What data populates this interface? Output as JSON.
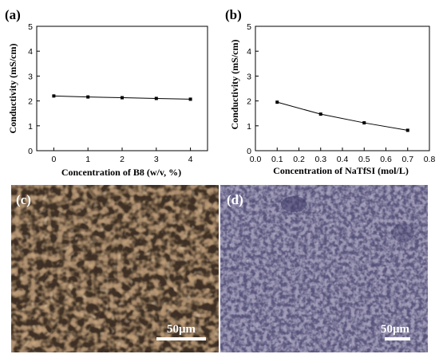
{
  "chart_data": [
    {
      "panel": "(a)",
      "type": "line",
      "xlabel": "Concentration of B8 (w/v, %)",
      "ylabel": "Conductivity (mS/cm)",
      "x": [
        0,
        1,
        2,
        3,
        4
      ],
      "y": [
        2.2,
        2.16,
        2.13,
        2.1,
        2.07
      ],
      "xlim": [
        -0.5,
        4.5
      ],
      "ylim": [
        0,
        5
      ],
      "xticks": [
        0,
        1,
        2,
        3,
        4
      ],
      "yticks": [
        0,
        1,
        2,
        3,
        4,
        5
      ],
      "grid": false
    },
    {
      "panel": "(b)",
      "type": "line",
      "xlabel": "Concentration of NaTfSI (mol/L)",
      "ylabel": "Conductivity (mS/cm)",
      "x": [
        0.1,
        0.3,
        0.5,
        0.7
      ],
      "y": [
        1.95,
        1.47,
        1.12,
        0.82
      ],
      "xlim": [
        0.0,
        0.8
      ],
      "ylim": [
        0,
        5
      ],
      "xticks": [
        "0.0",
        "0.1",
        "0.2",
        "0.3",
        "0.4",
        "0.5",
        "0.6",
        "0.7",
        "0.8"
      ],
      "yticks": [
        0,
        1,
        2,
        3,
        4,
        5
      ],
      "grid": false
    }
  ],
  "images": [
    {
      "label": "(c)",
      "scale_bar": "50μm",
      "colors": {
        "bg": "#c8a680",
        "dark": "#3a2c20",
        "light": "#ecd8bc"
      }
    },
    {
      "label": "(d)",
      "scale_bar": "50μm",
      "colors": {
        "bg": "#a6a2bc",
        "dark": "#4a4670",
        "light": "#dad4e6"
      }
    }
  ]
}
